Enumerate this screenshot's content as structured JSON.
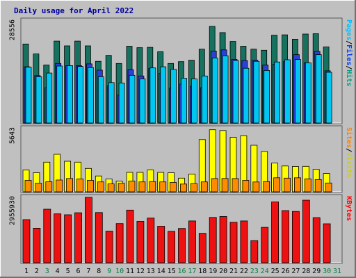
{
  "chart_data": {
    "title": "Daily usage for April 2022",
    "days": [
      "1",
      "2",
      "3",
      "4",
      "5",
      "6",
      "7",
      "8",
      "9",
      "10",
      "11",
      "12",
      "13",
      "14",
      "15",
      "16",
      "17",
      "18",
      "19",
      "20",
      "21",
      "22",
      "23",
      "24",
      "25",
      "26",
      "27",
      "28",
      "29",
      "30",
      "31"
    ],
    "weekend_days": [
      "3",
      "9",
      "10",
      "16",
      "17",
      "23",
      "24",
      "30",
      "31"
    ],
    "panels": [
      {
        "type": "bar",
        "ymax_label": "28556",
        "ymax": 28556,
        "legend": [
          {
            "text": "Hits",
            "color": "#00a080"
          },
          {
            "text": "/",
            "color": "#000000"
          },
          {
            "text": "Files",
            "color": "#0040ff"
          },
          {
            "text": "/",
            "color": "#000000"
          },
          {
            "text": "Pages",
            "color": "#00c0ff"
          }
        ],
        "series": [
          {
            "name": "Hits",
            "color": "#16725f",
            "values": [
              21500,
              18800,
              15800,
              22300,
              21000,
              22300,
              21000,
              16800,
              18400,
              16200,
              20900,
              20500,
              20600,
              19400,
              16200,
              16700,
              17100,
              20100,
              26300,
              24600,
              22200,
              20900,
              20100,
              19800,
              23900,
              24000,
              22800,
              24200,
              24300,
              20700,
              null
            ]
          },
          {
            "name": "Files",
            "color": "#2b3fd9",
            "values": [
              15300,
              12900,
              9600,
              16200,
              15600,
              15600,
              16100,
              14400,
              10100,
              7600,
              14500,
              12800,
              14800,
              13500,
              9500,
              10600,
              10000,
              9600,
              19600,
              19900,
              17300,
              17000,
              17100,
              15800,
              16000,
              16700,
              18600,
              16400,
              19500,
              14200,
              null
            ]
          },
          {
            "name": "Pages",
            "color": "#00c7f2",
            "values": [
              15200,
              12600,
              13600,
              15500,
              15600,
              15400,
              15100,
              12600,
              11000,
              10900,
              13000,
              12000,
              15000,
              15300,
              14600,
              12200,
              12000,
              12800,
              17700,
              18300,
              17000,
              14900,
              16800,
              14300,
              16600,
              17200,
              17300,
              16400,
              18600,
              13800,
              null
            ]
          }
        ]
      },
      {
        "type": "bar",
        "ymax_label": "5643",
        "ymax": 5643,
        "legend": [
          {
            "text": "Visits",
            "color": "#d0d000"
          },
          {
            "text": "/",
            "color": "#000000"
          },
          {
            "text": "Sites",
            "color": "#ff8000"
          }
        ],
        "series": [
          {
            "name": "Visits",
            "color": "#ffff00",
            "values": [
              1920,
              1690,
              2620,
              3310,
              2700,
              2620,
              2070,
              1400,
              1130,
              940,
              1720,
              1720,
              1930,
              1720,
              1690,
              1210,
              1570,
              4610,
              5480,
              5410,
              4810,
              4950,
              4110,
              3560,
              2540,
              2280,
              2240,
              2250,
              1980,
              1620,
              null
            ]
          },
          {
            "name": "Sites",
            "color": "#ff8c00",
            "values": [
              1010,
              760,
              890,
              1040,
              1180,
              1140,
              1010,
              880,
              700,
              760,
              950,
              880,
              900,
              880,
              830,
              690,
              730,
              880,
              1170,
              1180,
              1170,
              1010,
              870,
              900,
              1240,
              1210,
              1240,
              1150,
              1080,
              780,
              null
            ]
          }
        ]
      },
      {
        "type": "bar",
        "ymax_label": "2955930",
        "ymax": 2955930,
        "legend": [
          {
            "text": "KBytes",
            "color": "#ff0000"
          }
        ],
        "series": [
          {
            "name": "KBytes",
            "color": "#ee1111",
            "values": [
              1950000,
              1560000,
              2420000,
              2210000,
              2170000,
              2260000,
              2960000,
              2270000,
              1430000,
              1770000,
              2380000,
              1870000,
              2020000,
              1650000,
              1420000,
              1550000,
              1890000,
              1330000,
              2050000,
              2090000,
              1830000,
              1890000,
              1000000,
              1600000,
              2750000,
              2360000,
              2320000,
              2830000,
              2040000,
              1760000,
              null
            ]
          }
        ]
      }
    ]
  }
}
